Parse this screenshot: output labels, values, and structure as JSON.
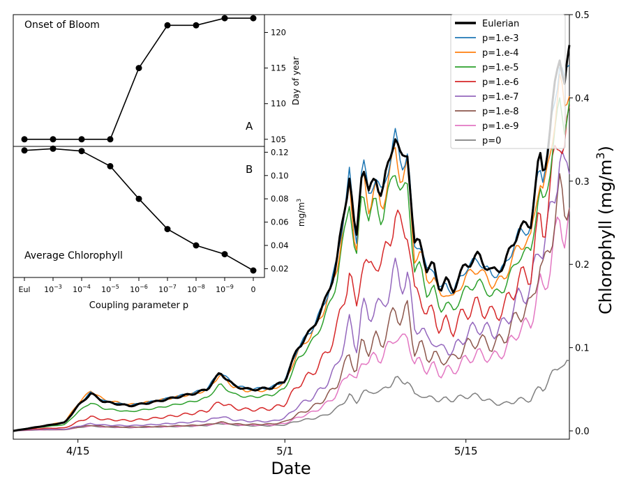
{
  "chart_data": [
    {
      "type": "line",
      "xlabel": "Date",
      "ylabel": "Chlorophyll (mg/m",
      "ylabel_sup": "3",
      "ylabel_close": ")",
      "ylim": [
        -0.01,
        0.5
      ],
      "x_range_days": [
        96,
        139
      ],
      "x_ticks": [
        {
          "day": 101,
          "label": "4/15"
        },
        {
          "day": 117,
          "label": "5/1"
        },
        {
          "day": 131,
          "label": "5/15"
        }
      ],
      "y_ticks": [
        "0.0",
        "0.1",
        "0.2",
        "0.3",
        "0.4",
        "0.5"
      ],
      "y_axis_side": "right",
      "legend_placement": "upper right",
      "date_keypoints": [
        96,
        100,
        101,
        102,
        103,
        105,
        107,
        110,
        111,
        112,
        113,
        114,
        115,
        116,
        117,
        118,
        119,
        120,
        121,
        122,
        122.5,
        123,
        123.5,
        124,
        124.5,
        125,
        125.5,
        126,
        126.5,
        127,
        127.5,
        128,
        128.5,
        129,
        129.5,
        130,
        131,
        132,
        133,
        134,
        135,
        136,
        136.7,
        137,
        137.4,
        138.3,
        138.6,
        139
      ],
      "eulerian_values": [
        0.0,
        0.01,
        0.03,
        0.045,
        0.035,
        0.03,
        0.035,
        0.045,
        0.05,
        0.07,
        0.055,
        0.05,
        0.05,
        0.052,
        0.06,
        0.1,
        0.12,
        0.15,
        0.2,
        0.31,
        0.22,
        0.33,
        0.28,
        0.31,
        0.28,
        0.32,
        0.36,
        0.32,
        0.34,
        0.22,
        0.23,
        0.19,
        0.2,
        0.17,
        0.18,
        0.17,
        0.2,
        0.21,
        0.19,
        0.2,
        0.24,
        0.25,
        0.33,
        0.31,
        0.35,
        0.46,
        0.42,
        0.45
      ],
      "ratio_keypoints": [
        96,
        100,
        112,
        116,
        118,
        120,
        122,
        124,
        126,
        128,
        130,
        132,
        134,
        136,
        138,
        139
      ],
      "series": [
        {
          "name": "Eulerian",
          "color": "#000000",
          "linewidth": 3,
          "ratio": [
            1,
            1,
            1,
            1,
            1,
            1,
            1,
            1,
            1,
            1,
            1,
            1,
            1,
            1,
            1,
            1
          ]
        },
        {
          "name": "p=1.e-3",
          "color": "#1f77b4",
          "linewidth": 1.5,
          "ratio": [
            1.0,
            1.02,
            1.02,
            1.01,
            1.0,
            1.0,
            1.0,
            1.0,
            0.99,
            0.99,
            0.98,
            0.98,
            0.98,
            0.98,
            0.98,
            0.98
          ]
        },
        {
          "name": "p=1.e-4",
          "color": "#ff7f0e",
          "linewidth": 1.5,
          "ratio": [
            1.0,
            1.1,
            0.97,
            0.96,
            0.95,
            0.96,
            0.96,
            0.95,
            0.94,
            0.94,
            0.93,
            0.93,
            0.92,
            0.92,
            0.92,
            0.92
          ]
        },
        {
          "name": "p=1.e-5",
          "color": "#2ca02c",
          "linewidth": 1.5,
          "ratio": [
            0.9,
            0.75,
            0.8,
            0.83,
            0.86,
            0.88,
            0.9,
            0.9,
            0.88,
            0.86,
            0.85,
            0.85,
            0.86,
            0.87,
            0.87,
            0.87
          ]
        },
        {
          "name": "p=1.e-6",
          "color": "#d62728",
          "linewidth": 1.5,
          "ratio": [
            0.7,
            0.35,
            0.5,
            0.52,
            0.55,
            0.58,
            0.62,
            0.68,
            0.74,
            0.72,
            0.72,
            0.72,
            0.74,
            0.76,
            0.8,
            0.81
          ]
        },
        {
          "name": "p=1.e-7",
          "color": "#9467bd",
          "linewidth": 1.5,
          "ratio": [
            0.5,
            0.18,
            0.25,
            0.22,
            0.3,
            0.35,
            0.42,
            0.5,
            0.55,
            0.56,
            0.56,
            0.6,
            0.64,
            0.68,
            0.72,
            0.72
          ]
        },
        {
          "name": "p=1.e-8",
          "color": "#8c564b",
          "linewidth": 1.5,
          "ratio": [
            0.4,
            0.15,
            0.15,
            0.16,
            0.2,
            0.25,
            0.3,
            0.36,
            0.42,
            0.46,
            0.5,
            0.52,
            0.56,
            0.6,
            0.63,
            0.63
          ]
        },
        {
          "name": "p=1.e-9",
          "color": "#e377c2",
          "linewidth": 1.5,
          "ratio": [
            0.3,
            0.14,
            0.14,
            0.14,
            0.16,
            0.2,
            0.24,
            0.3,
            0.33,
            0.38,
            0.42,
            0.44,
            0.48,
            0.52,
            0.56,
            0.56
          ]
        },
        {
          "name": "p=0",
          "color": "#7f7f7f",
          "linewidth": 1.5,
          "ratio": [
            0.3,
            0.13,
            0.13,
            0.12,
            0.12,
            0.12,
            0.14,
            0.16,
            0.18,
            0.2,
            0.22,
            0.2,
            0.16,
            0.15,
            0.18,
            0.18
          ]
        }
      ]
    },
    {
      "type": "line",
      "panel_label": "A",
      "annotation": "Onset of Bloom",
      "ylabel": "Day of year",
      "ylim": [
        104,
        122.5
      ],
      "categories": [
        "Eul",
        "10^-3",
        "10^-4",
        "10^-5",
        "10^-6",
        "10^-7",
        "10^-8",
        "10^-9",
        "0"
      ],
      "values": [
        105,
        105,
        105,
        105,
        115,
        121,
        121,
        122,
        122
      ],
      "y_ticks": [
        "105",
        "110",
        "115",
        "120"
      ],
      "color": "#000000"
    },
    {
      "type": "line",
      "panel_label": "B",
      "annotation": "Average Chlorophyll",
      "ylabel": "mg/m",
      "ylabel_sup": "3",
      "xlabel": "Coupling parameter p",
      "ylim": [
        0.0125,
        0.125
      ],
      "categories": [
        "Eul",
        "10^-3",
        "10^-4",
        "10^-5",
        "10^-6",
        "10^-7",
        "10^-8",
        "10^-9",
        "0"
      ],
      "values": [
        0.1215,
        0.123,
        0.121,
        0.108,
        0.08,
        0.054,
        0.04,
        0.0325,
        0.0185
      ],
      "y_ticks": [
        "0.02",
        "0.04",
        "0.06",
        "0.08",
        "0.10",
        "0.12"
      ],
      "color": "#000000"
    }
  ],
  "inset_tick_labels": [
    {
      "base": "Eul",
      "exp": ""
    },
    {
      "base": "10",
      "exp": "−3"
    },
    {
      "base": "10",
      "exp": "−4"
    },
    {
      "base": "10",
      "exp": "−5"
    },
    {
      "base": "10",
      "exp": "−6"
    },
    {
      "base": "10",
      "exp": "−7"
    },
    {
      "base": "10",
      "exp": "−8"
    },
    {
      "base": "10",
      "exp": "−9"
    },
    {
      "base": "0",
      "exp": ""
    }
  ]
}
